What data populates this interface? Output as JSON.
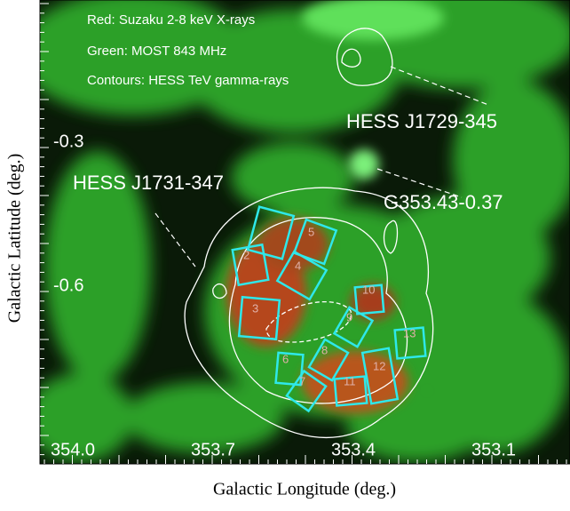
{
  "figure": {
    "legend": [
      "Red: Suzaku 2-8 keV X-rays",
      "Green: MOST 843 MHz",
      "Contours: HESS TeV gamma-rays"
    ],
    "sources": [
      "HESS J1729-345",
      "G353.43-0.37",
      "HESS J1731-347"
    ],
    "x_axis": {
      "title": "Galactic Longitude (deg.)",
      "ticks": [
        "354.0",
        "353.7",
        "353.4",
        "353.1"
      ]
    },
    "y_axis": {
      "title": "Galactic Latitude (deg.)",
      "ticks": [
        "-0.3",
        "-0.6"
      ]
    },
    "regions": [
      "2",
      "3",
      "4",
      "5",
      "6",
      "7",
      "8",
      "9",
      "10",
      "11",
      "12",
      "13"
    ]
  }
}
